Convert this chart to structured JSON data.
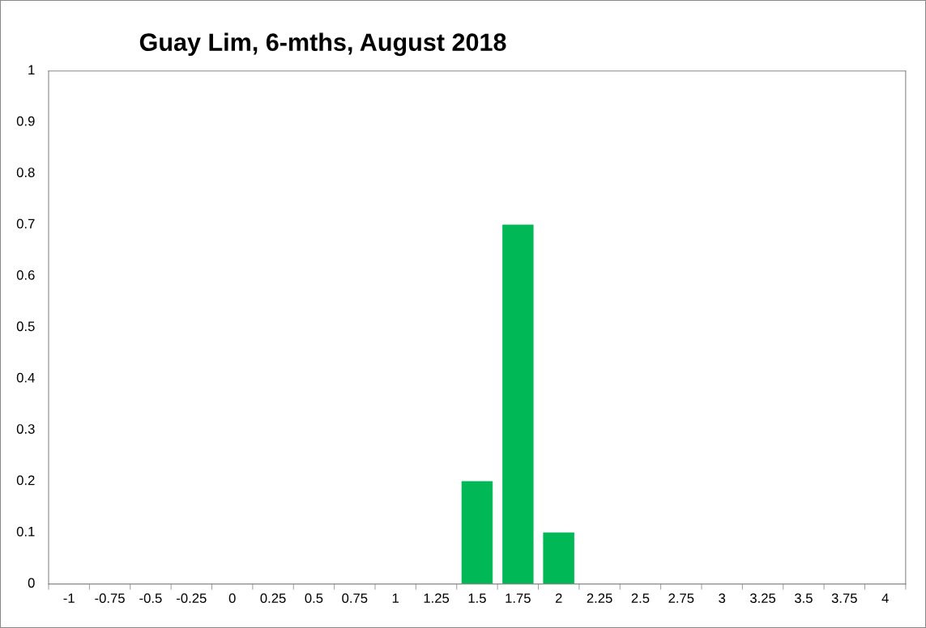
{
  "chart_data": {
    "type": "bar",
    "title": "Guay Lim, 6-mths, August 2018",
    "categories": [
      "-1",
      "-0.75",
      "-0.5",
      "-0.25",
      "0",
      "0.25",
      "0.5",
      "0.75",
      "1",
      "1.25",
      "1.5",
      "1.75",
      "2",
      "2.25",
      "2.5",
      "2.75",
      "3",
      "3.25",
      "3.5",
      "3.75",
      "4"
    ],
    "values": [
      0,
      0,
      0,
      0,
      0,
      0,
      0,
      0,
      0,
      0,
      0.2,
      0.7,
      0.1,
      0,
      0,
      0,
      0,
      0,
      0,
      0,
      0
    ],
    "color": "#00b956",
    "ylim": [
      0,
      1
    ],
    "yticks": [
      0,
      {
        "value": 0.1,
        "label": "0.1"
      },
      {
        "value": 0.2,
        "label": "0.2"
      },
      {
        "value": 0.3,
        "label": "0.3"
      },
      {
        "value": 0.4,
        "label": "0.4"
      },
      {
        "value": 0.5,
        "label": "0.5"
      },
      {
        "value": 0.6,
        "label": "0.6"
      },
      {
        "value": 0.7,
        "label": "0.7"
      },
      {
        "value": 0.8,
        "label": "0.8"
      },
      {
        "value": 0.9,
        "label": "0.9"
      },
      1
    ],
    "grid": false
  }
}
